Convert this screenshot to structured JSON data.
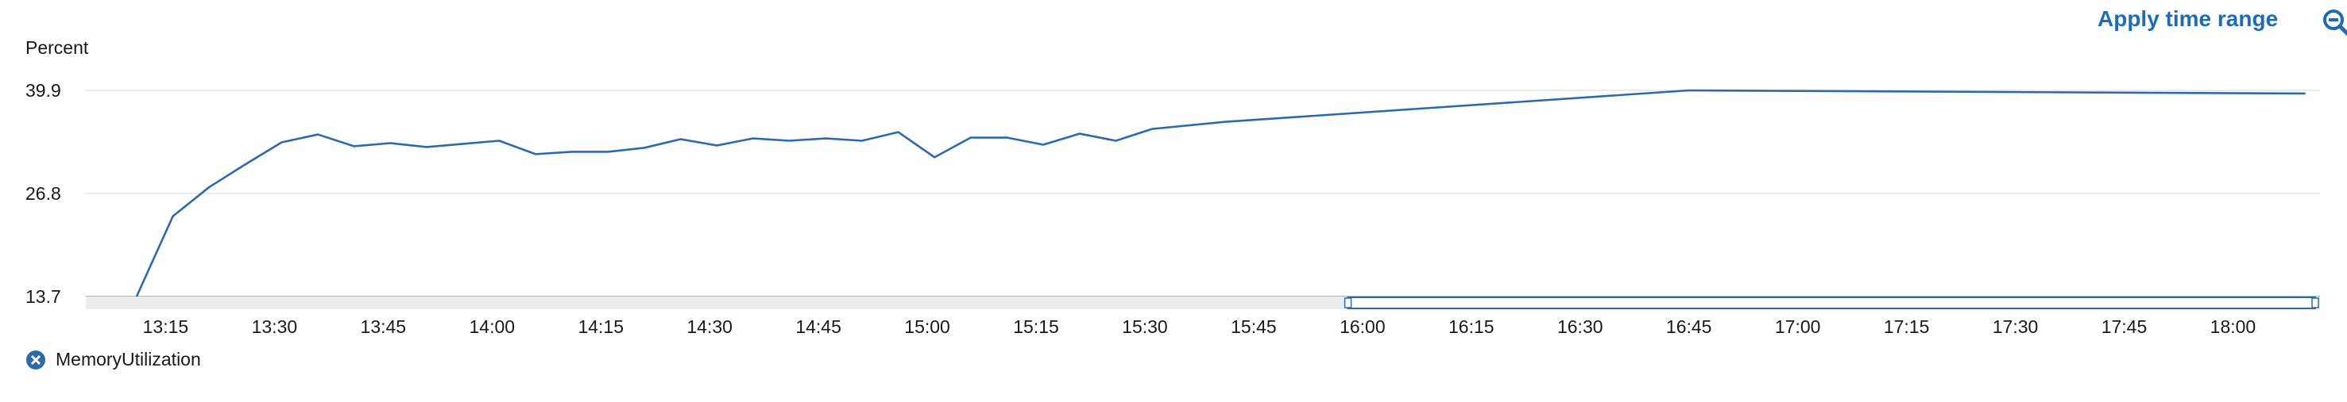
{
  "header": {
    "apply_label": "Apply time range"
  },
  "colors": {
    "series": "#2e6aab",
    "grid": "#eaeded",
    "axis": "#aab7b8",
    "brush_fill": "#ededed",
    "brush_border": "#2e6aab",
    "link": "#1f6cb3"
  },
  "icons": {
    "zoom": "zoom-out-icon",
    "legend": "close-x-icon"
  },
  "chart_data": {
    "type": "line",
    "ylabel": "Percent",
    "ylim": [
      13.7,
      39.9
    ],
    "yticks": [
      13.7,
      26.8,
      39.9
    ],
    "xlim": [
      "13:04",
      "18:12"
    ],
    "xticks": [
      "13:15",
      "13:30",
      "13:45",
      "14:00",
      "14:15",
      "14:30",
      "14:45",
      "15:00",
      "15:15",
      "15:30",
      "15:45",
      "16:00",
      "16:15",
      "16:30",
      "16:45",
      "17:00",
      "17:15",
      "17:30",
      "17:45",
      "18:00"
    ],
    "grid": true,
    "legend_position": "bottom-left",
    "series": [
      {
        "name": "MemoryUtilization",
        "x": [
          "13:11",
          "13:16",
          "13:21",
          "13:26",
          "13:31",
          "13:36",
          "13:41",
          "13:46",
          "13:51",
          "13:56",
          "14:01",
          "14:06",
          "14:11",
          "14:16",
          "14:21",
          "14:26",
          "14:31",
          "14:36",
          "14:41",
          "14:46",
          "14:51",
          "14:56",
          "15:01",
          "15:06",
          "15:11",
          "15:16",
          "15:21",
          "15:26",
          "15:31",
          "15:41",
          "16:45",
          "18:10"
        ],
        "values": [
          13.7,
          23.9,
          27.6,
          30.5,
          33.3,
          34.3,
          32.8,
          33.2,
          32.7,
          33.1,
          33.5,
          31.8,
          32.1,
          32.1,
          32.6,
          33.7,
          32.9,
          33.8,
          33.5,
          33.8,
          33.5,
          34.6,
          31.4,
          33.9,
          33.9,
          33.0,
          34.4,
          33.5,
          35.0,
          35.9,
          39.9,
          39.5
        ]
      }
    ],
    "brush_range": [
      "15:58",
      "18:12"
    ]
  }
}
